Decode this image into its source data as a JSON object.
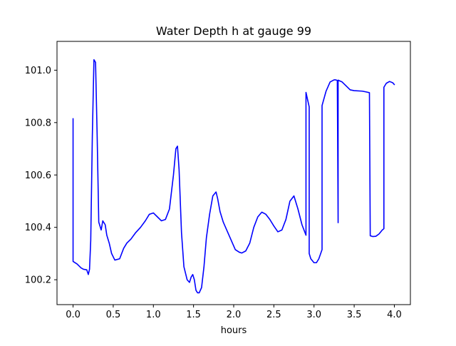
{
  "chart_data": {
    "type": "line",
    "title": "Water Depth h at gauge 99",
    "xlabel": "hours",
    "ylabel": "",
    "xlim": [
      -0.2,
      4.2
    ],
    "ylim": [
      100.105,
      101.11
    ],
    "xticks": [
      0.0,
      0.5,
      1.0,
      1.5,
      2.0,
      2.5,
      3.0,
      3.5,
      4.0
    ],
    "xtick_labels": [
      "0.0",
      "0.5",
      "1.0",
      "1.5",
      "2.0",
      "2.5",
      "3.0",
      "3.5",
      "4.0"
    ],
    "yticks": [
      100.2,
      100.4,
      100.6,
      100.8,
      101.0
    ],
    "ytick_labels": [
      "100.2",
      "100.4",
      "100.6",
      "100.8",
      "101.0"
    ],
    "grid": false,
    "legend": "none",
    "series": [
      {
        "color": "#0000ff",
        "x": [
          0.0,
          0.0,
          0.05,
          0.1,
          0.13,
          0.17,
          0.19,
          0.205,
          0.22,
          0.24,
          0.26,
          0.28,
          0.3,
          0.32,
          0.35,
          0.37,
          0.4,
          0.42,
          0.45,
          0.48,
          0.52,
          0.58,
          0.63,
          0.67,
          0.72,
          0.78,
          0.84,
          0.9,
          0.95,
          1.0,
          1.05,
          1.1,
          1.15,
          1.2,
          1.25,
          1.28,
          1.3,
          1.32,
          1.35,
          1.38,
          1.42,
          1.45,
          1.47,
          1.49,
          1.51,
          1.53,
          1.55,
          1.57,
          1.6,
          1.63,
          1.66,
          1.7,
          1.74,
          1.78,
          1.8,
          1.83,
          1.87,
          1.92,
          1.97,
          2.02,
          2.07,
          2.1,
          2.15,
          2.2,
          2.25,
          2.3,
          2.35,
          2.4,
          2.45,
          2.5,
          2.55,
          2.6,
          2.65,
          2.7,
          2.75,
          2.8,
          2.85,
          2.9,
          2.9,
          2.94,
          2.94,
          2.96,
          3.0,
          3.03,
          3.06,
          3.1,
          3.1,
          3.15,
          3.2,
          3.25,
          3.27,
          3.28,
          3.29,
          3.3,
          3.3,
          3.35,
          3.4,
          3.45,
          3.5,
          3.6,
          3.65,
          3.69,
          3.7,
          3.73,
          3.77,
          3.81,
          3.85,
          3.87,
          3.87,
          3.9,
          3.94,
          3.98,
          4.0
        ],
        "y": [
          100.815,
          100.27,
          100.26,
          100.245,
          100.24,
          100.238,
          100.22,
          100.24,
          100.35,
          100.75,
          101.04,
          101.03,
          100.75,
          100.42,
          100.39,
          100.425,
          100.41,
          100.37,
          100.34,
          100.3,
          100.275,
          100.28,
          100.32,
          100.34,
          100.355,
          100.38,
          100.4,
          100.425,
          100.45,
          100.455,
          100.44,
          100.425,
          100.43,
          100.47,
          100.6,
          100.7,
          100.71,
          100.62,
          100.38,
          100.25,
          100.2,
          100.19,
          100.21,
          100.22,
          100.2,
          100.16,
          100.15,
          100.15,
          100.17,
          100.25,
          100.36,
          100.45,
          100.52,
          100.535,
          100.51,
          100.46,
          100.42,
          100.385,
          100.35,
          100.315,
          100.305,
          100.302,
          100.31,
          100.34,
          100.4,
          100.44,
          100.458,
          100.45,
          100.43,
          100.405,
          100.383,
          100.39,
          100.43,
          100.5,
          100.52,
          100.47,
          100.41,
          100.37,
          100.915,
          100.86,
          100.3,
          100.28,
          100.265,
          100.265,
          100.28,
          100.315,
          100.865,
          100.92,
          100.955,
          100.963,
          100.963,
          100.962,
          100.96,
          100.418,
          100.962,
          100.955,
          100.94,
          100.925,
          100.922,
          100.92,
          100.917,
          100.914,
          100.368,
          100.365,
          100.366,
          100.375,
          100.39,
          100.395,
          100.935,
          100.95,
          100.957,
          100.952,
          100.945
        ]
      }
    ]
  }
}
